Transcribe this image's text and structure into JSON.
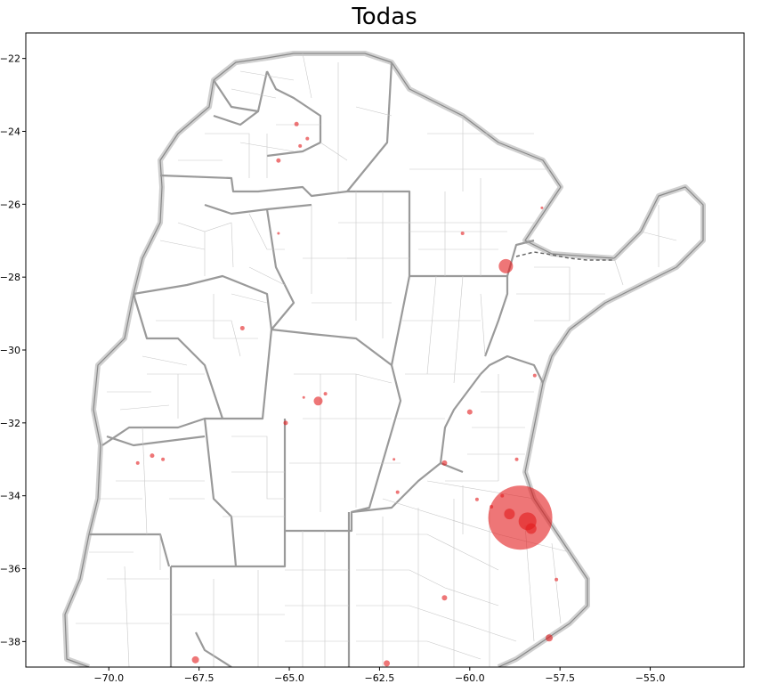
{
  "title": "Todas",
  "chart_data": {
    "type": "scatter",
    "title": "Todas",
    "xlabel": "",
    "ylabel": "",
    "xlim": [
      -72.3,
      -52.4
    ],
    "ylim": [
      -38.7,
      -21.3
    ],
    "xticks": [
      -70.0,
      -67.5,
      -65.0,
      -62.5,
      -60.0,
      -57.5,
      -55.0
    ],
    "xtick_labels": [
      "−70.0",
      "−67.5",
      "−65.0",
      "−62.5",
      "−60.0",
      "−57.5",
      "−55.0"
    ],
    "yticks": [
      -22,
      -24,
      -26,
      -28,
      -30,
      -32,
      -34,
      -36,
      -38
    ],
    "ytick_labels": [
      "−22",
      "−24",
      "−26",
      "−28",
      "−30",
      "−32",
      "−34",
      "−36",
      "−38"
    ],
    "grid": false,
    "marker_color": "#e31a1c",
    "marker_alpha": 0.6,
    "series": [
      {
        "points": [
          {
            "lon": -58.6,
            "lat": -34.6,
            "size": 36
          },
          {
            "lon": -58.4,
            "lat": -34.7,
            "size": 10
          },
          {
            "lon": -58.9,
            "lat": -34.5,
            "size": 6
          },
          {
            "lon": -58.3,
            "lat": -34.9,
            "size": 6
          },
          {
            "lon": -59.0,
            "lat": -27.7,
            "size": 8
          },
          {
            "lon": -64.2,
            "lat": -31.4,
            "size": 5
          },
          {
            "lon": -60.0,
            "lat": -31.7,
            "size": 3
          },
          {
            "lon": -60.7,
            "lat": -33.1,
            "size": 3
          },
          {
            "lon": -67.6,
            "lat": -38.5,
            "size": 4
          },
          {
            "lon": -57.8,
            "lat": -37.9,
            "size": 4
          },
          {
            "lon": -62.3,
            "lat": -38.6,
            "size": 3.5
          },
          {
            "lon": -60.7,
            "lat": -36.8,
            "size": 3
          },
          {
            "lon": -65.3,
            "lat": -24.8,
            "size": 2.5
          },
          {
            "lon": -64.8,
            "lat": -23.8,
            "size": 2.5
          },
          {
            "lon": -65.3,
            "lat": -26.8,
            "size": 1.5
          },
          {
            "lon": -65.1,
            "lat": -32.0,
            "size": 2.5
          },
          {
            "lon": -68.8,
            "lat": -32.9,
            "size": 2.5
          },
          {
            "lon": -68.5,
            "lat": -33.0,
            "size": 2
          },
          {
            "lon": -69.2,
            "lat": -33.1,
            "size": 2
          },
          {
            "lon": -66.3,
            "lat": -29.4,
            "size": 2.5
          },
          {
            "lon": -62.0,
            "lat": -33.9,
            "size": 2
          },
          {
            "lon": -59.8,
            "lat": -34.1,
            "size": 2
          },
          {
            "lon": -59.4,
            "lat": -34.3,
            "size": 2
          },
          {
            "lon": -59.1,
            "lat": -34.0,
            "size": 2
          },
          {
            "lon": -57.6,
            "lat": -36.3,
            "size": 2
          },
          {
            "lon": -58.2,
            "lat": -30.7,
            "size": 2
          },
          {
            "lon": -58.7,
            "lat": -33.0,
            "size": 2
          },
          {
            "lon": -60.2,
            "lat": -26.8,
            "size": 2
          },
          {
            "lon": -58.0,
            "lat": -26.1,
            "size": 1.5
          },
          {
            "lon": -64.0,
            "lat": -31.2,
            "size": 2
          },
          {
            "lon": -64.6,
            "lat": -31.3,
            "size": 1.5
          },
          {
            "lon": -62.1,
            "lat": -33.0,
            "size": 1.5
          },
          {
            "lon": -64.5,
            "lat": -24.2,
            "size": 2
          },
          {
            "lon": -64.7,
            "lat": -24.4,
            "size": 2
          }
        ]
      }
    ]
  }
}
